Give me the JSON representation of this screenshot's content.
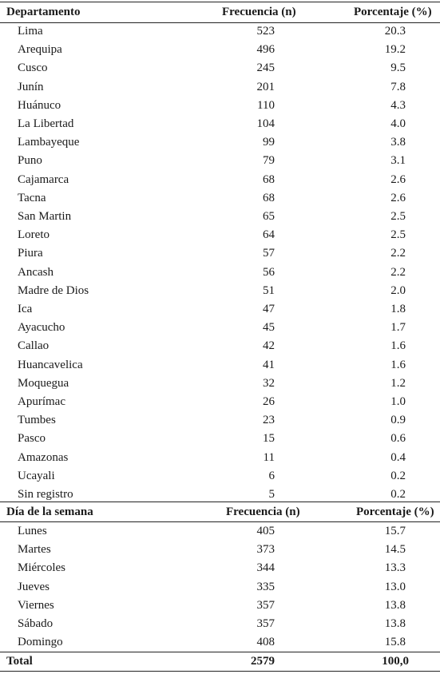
{
  "headers": {
    "departamento": "Departamento",
    "frecuencia": "Frecuencia (n)",
    "porcentaje": "Porcentaje (%)"
  },
  "departamentos": [
    {
      "name": "Lima",
      "n": "523",
      "pct": "20.3"
    },
    {
      "name": "Arequipa",
      "n": "496",
      "pct": "19.2"
    },
    {
      "name": "Cusco",
      "n": "245",
      "pct": "9.5"
    },
    {
      "name": "Junín",
      "n": "201",
      "pct": "7.8"
    },
    {
      "name": "Huánuco",
      "n": "110",
      "pct": "4.3"
    },
    {
      "name": "La Libertad",
      "n": "104",
      "pct": "4.0"
    },
    {
      "name": "Lambayeque",
      "n": "99",
      "pct": "3.8"
    },
    {
      "name": "Puno",
      "n": "79",
      "pct": "3.1"
    },
    {
      "name": "Cajamarca",
      "n": "68",
      "pct": "2.6"
    },
    {
      "name": "Tacna",
      "n": "68",
      "pct": "2.6"
    },
    {
      "name": "San Martin",
      "n": "65",
      "pct": "2.5"
    },
    {
      "name": "Loreto",
      "n": "64",
      "pct": "2.5"
    },
    {
      "name": "Piura",
      "n": "57",
      "pct": "2.2"
    },
    {
      "name": "Ancash",
      "n": "56",
      "pct": "2.2"
    },
    {
      "name": "Madre de Dios",
      "n": "51",
      "pct": "2.0"
    },
    {
      "name": "Ica",
      "n": "47",
      "pct": "1.8"
    },
    {
      "name": "Ayacucho",
      "n": "45",
      "pct": "1.7"
    },
    {
      "name": "Callao",
      "n": "42",
      "pct": "1.6"
    },
    {
      "name": "Huancavelica",
      "n": "41",
      "pct": "1.6"
    },
    {
      "name": "Moquegua",
      "n": "32",
      "pct": "1.2"
    },
    {
      "name": "Apurímac",
      "n": "26",
      "pct": "1.0"
    },
    {
      "name": "Tumbes",
      "n": "23",
      "pct": "0.9"
    },
    {
      "name": "Pasco",
      "n": "15",
      "pct": "0.6"
    },
    {
      "name": "Amazonas",
      "n": "11",
      "pct": "0.4"
    },
    {
      "name": "Ucayali",
      "n": "6",
      "pct": "0.2"
    },
    {
      "name": "Sin registro",
      "n": "5",
      "pct": "0.2"
    }
  ],
  "dia_headers": {
    "dia": "Día de la semana",
    "frecuencia": "Frecuencia (n)",
    "porcentaje": "Porcentaje (%)"
  },
  "dias": [
    {
      "name": "Lunes",
      "n": "405",
      "pct": "15.7"
    },
    {
      "name": "Martes",
      "n": "373",
      "pct": "14.5"
    },
    {
      "name": "Miércoles",
      "n": "344",
      "pct": "13.3"
    },
    {
      "name": "Jueves",
      "n": "335",
      "pct": "13.0"
    },
    {
      "name": "Viernes",
      "n": "357",
      "pct": "13.8"
    },
    {
      "name": "Sábado",
      "n": "357",
      "pct": "13.8"
    },
    {
      "name": "Domingo",
      "n": "408",
      "pct": "15.8"
    }
  ],
  "total": {
    "label": "Total",
    "n": "2579",
    "pct": "100,0"
  }
}
